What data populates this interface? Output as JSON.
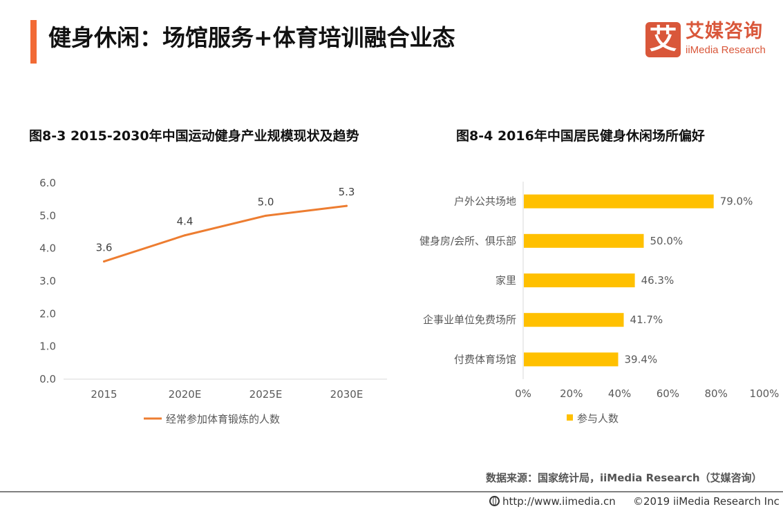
{
  "header": {
    "title": "健身休闲：场馆服务+体育培训融合业态",
    "accent_color": "#f26a35"
  },
  "logo": {
    "glyph": "艾",
    "cn": "艾媒咨询",
    "en": "iiMedia Research",
    "color": "#d9573a"
  },
  "chart_data": [
    {
      "type": "line",
      "title": "图8-3  2015-2030年中国运动健身产业规模现状及趋势",
      "categories": [
        "2015",
        "2020E",
        "2025E",
        "2030E"
      ],
      "series": [
        {
          "name": "经常参加体育锻炼的人数",
          "values": [
            3.6,
            4.4,
            5.0,
            5.3
          ],
          "color": "#ed7d31"
        }
      ],
      "data_labels": [
        "3.6",
        "4.4",
        "5.0",
        "5.3"
      ],
      "ylim": [
        0,
        6
      ],
      "yticks": [
        "0.0",
        "1.0",
        "2.0",
        "3.0",
        "4.0",
        "5.0",
        "6.0"
      ],
      "xlabel": "",
      "ylabel": "",
      "grid": false,
      "legend": "bottom"
    },
    {
      "type": "bar",
      "orientation": "horizontal",
      "title": "图8-4  2016年中国居民健身休闲场所偏好",
      "categories": [
        "户外公共场地",
        "健身房/会所、俱乐部",
        "家里",
        "企事业单位免费场所",
        "付费体育场馆"
      ],
      "series": [
        {
          "name": "参与人数",
          "values": [
            79.0,
            50.0,
            46.3,
            41.7,
            39.4
          ],
          "color": "#ffc000"
        }
      ],
      "data_labels": [
        "79.0%",
        "50.0%",
        "46.3%",
        "41.7%",
        "39.4%"
      ],
      "xlim": [
        0,
        100
      ],
      "xticks": [
        "0%",
        "20%",
        "40%",
        "60%",
        "80%",
        "100%"
      ],
      "xlabel": "",
      "ylabel": "",
      "grid": false,
      "legend": "bottom"
    }
  ],
  "source": "数据来源：国家统计局，iiMedia Research（艾媒咨询）",
  "footer": {
    "url": "http://www.iimedia.cn",
    "copyright": "©2019  iiMedia Research  Inc"
  }
}
